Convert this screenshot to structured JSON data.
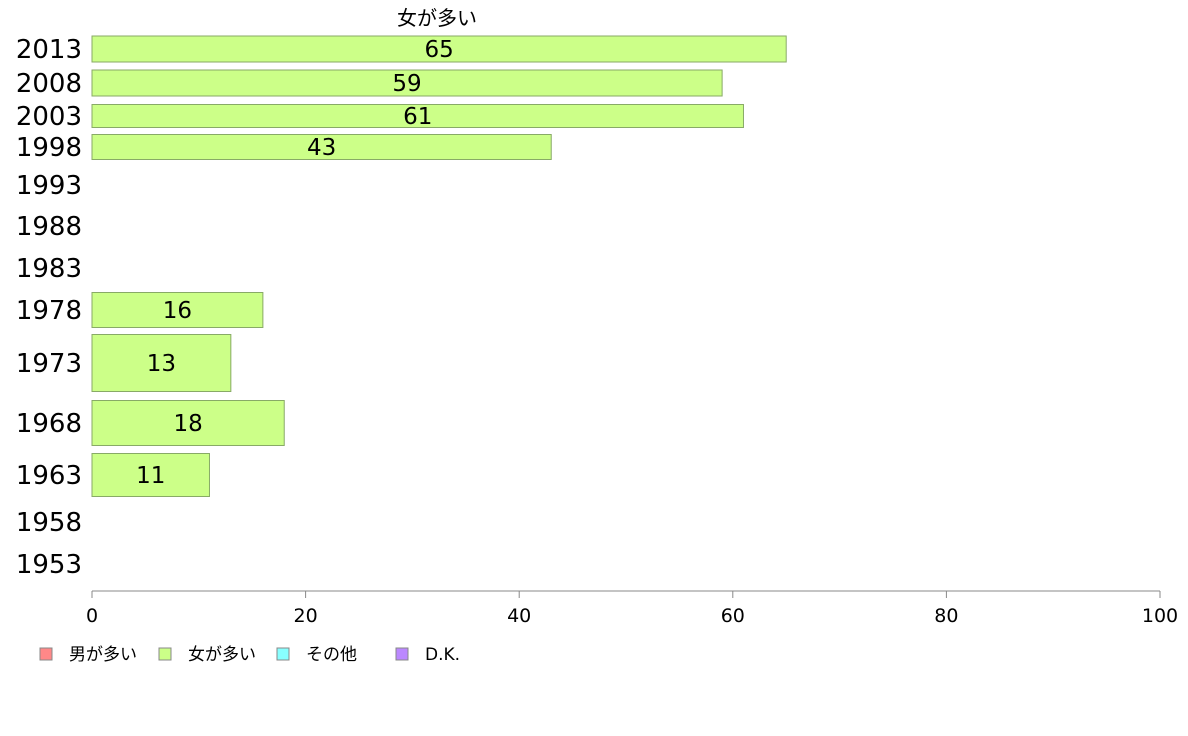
{
  "chart_data": {
    "type": "bar",
    "orientation": "horizontal",
    "title": "",
    "series_title": "女が多い",
    "xlim": [
      0,
      100
    ],
    "xticks": [
      "0",
      "20",
      "40",
      "60",
      "80",
      "100"
    ],
    "grid": false,
    "categories": [
      "2013",
      "2008",
      "2003",
      "1998",
      "1993",
      "1988",
      "1983",
      "1978",
      "1973",
      "1968",
      "1963",
      "1958",
      "1953"
    ],
    "values": [
      65,
      59,
      61,
      43,
      null,
      null,
      null,
      16,
      13,
      18,
      11,
      null,
      null
    ],
    "bar_color": "#ccff88",
    "bar_stroke": "#88aa66",
    "legend_position": "bottom-left",
    "legend": [
      {
        "label": "男が多い",
        "color": "#ff8888"
      },
      {
        "label": "女が多い",
        "color": "#ccff88"
      },
      {
        "label": "その他",
        "color": "#88ffff"
      },
      {
        "label": "D.K.",
        "color": "#bb88ff"
      }
    ]
  }
}
